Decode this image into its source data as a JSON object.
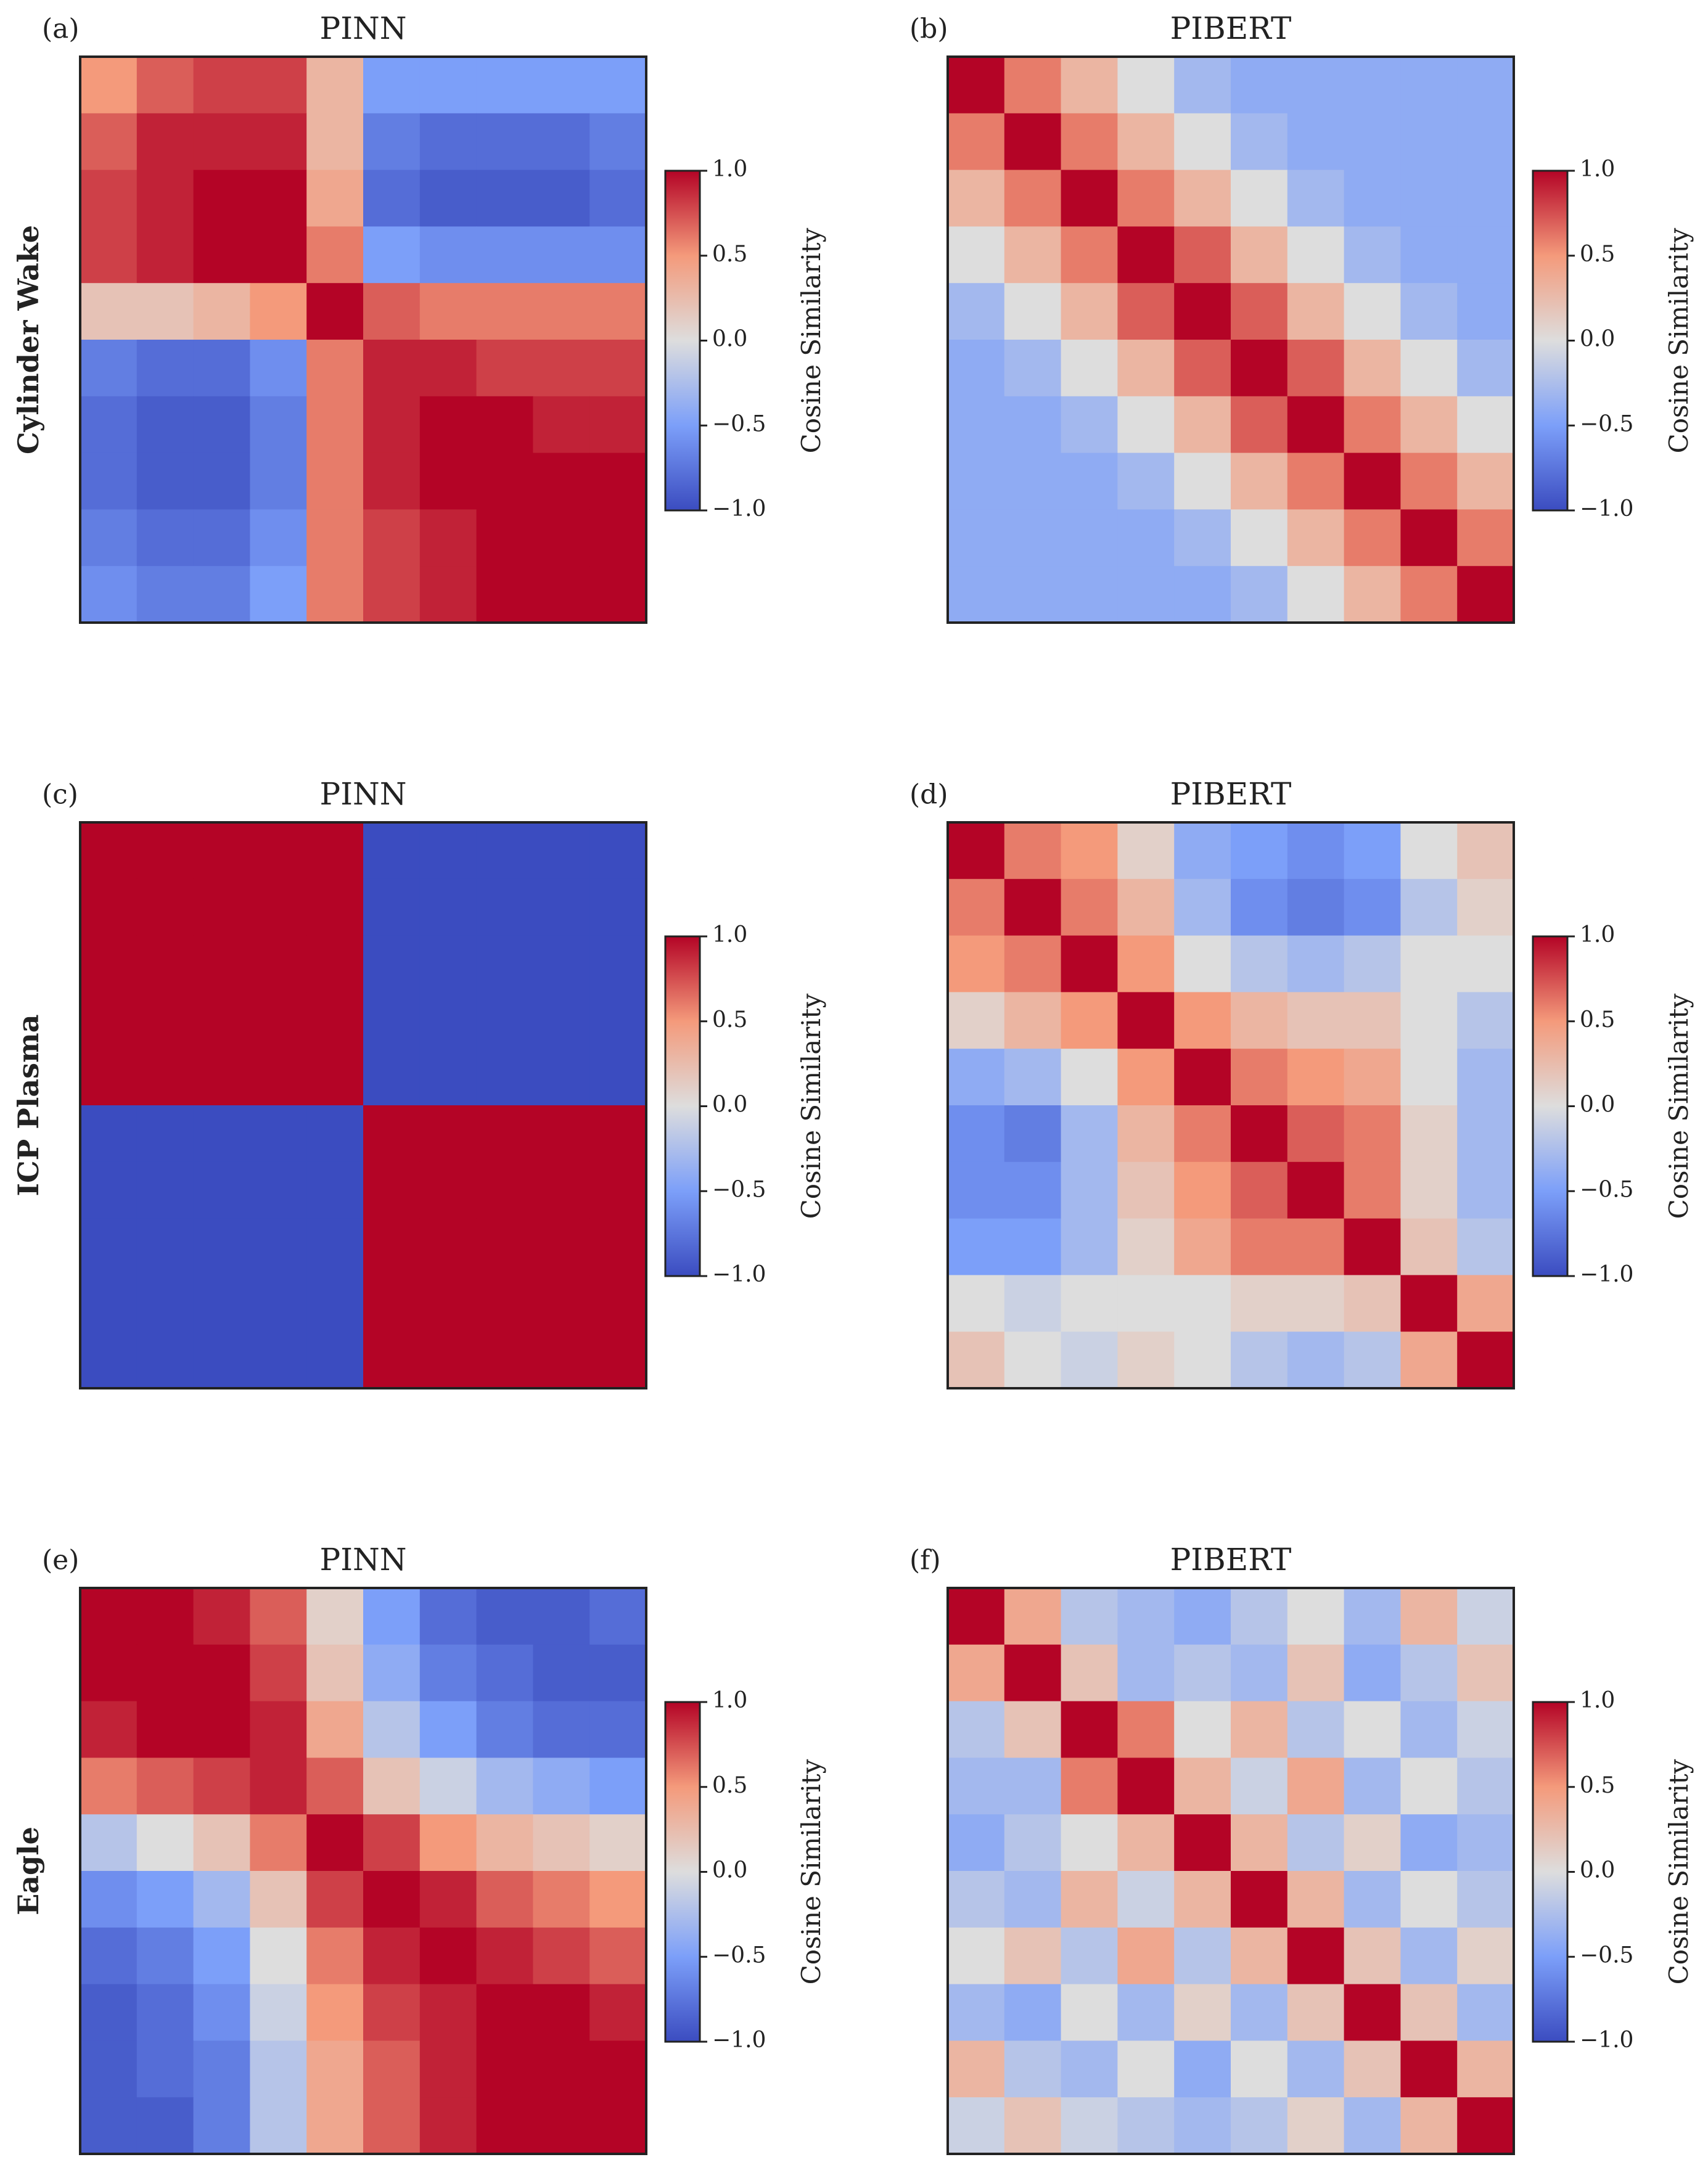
{
  "chart_data": [
    {
      "type": "heatmap",
      "panel_label": "(a)",
      "title": "PINN",
      "row_label": "Cylinder Wake",
      "colorbar_label": "Cosine Similarity",
      "clim": [
        -1,
        1
      ],
      "cticks": [
        {
          "value": -1,
          "label": "−1.0"
        },
        {
          "value": -0.5,
          "label": "−0.5"
        },
        {
          "value": 0,
          "label": "0.0"
        },
        {
          "value": 0.5,
          "label": "0.5"
        },
        {
          "value": 1,
          "label": "1.0"
        }
      ],
      "z": [
        [
          0.5,
          0.7,
          0.8,
          0.8,
          0.3,
          -0.5,
          -0.5,
          -0.5,
          -0.5,
          -0.5
        ],
        [
          0.7,
          0.9,
          0.9,
          0.9,
          0.3,
          -0.7,
          -0.8,
          -0.8,
          -0.8,
          -0.7
        ],
        [
          0.8,
          0.9,
          1.0,
          1.0,
          0.4,
          -0.8,
          -0.9,
          -0.9,
          -0.9,
          -0.8
        ],
        [
          0.8,
          0.9,
          1.0,
          1.0,
          0.6,
          -0.5,
          -0.6,
          -0.6,
          -0.6,
          -0.6
        ],
        [
          0.2,
          0.2,
          0.3,
          0.5,
          1.0,
          0.7,
          0.6,
          0.6,
          0.6,
          0.6
        ],
        [
          -0.7,
          -0.8,
          -0.8,
          -0.6,
          0.6,
          0.9,
          0.9,
          0.8,
          0.8,
          0.8
        ],
        [
          -0.8,
          -0.9,
          -0.9,
          -0.7,
          0.6,
          0.9,
          1.0,
          1.0,
          0.9,
          0.9
        ],
        [
          -0.8,
          -0.9,
          -0.9,
          -0.7,
          0.6,
          0.9,
          1.0,
          1.0,
          1.0,
          1.0
        ],
        [
          -0.7,
          -0.8,
          -0.8,
          -0.6,
          0.6,
          0.8,
          0.9,
          1.0,
          1.0,
          1.0
        ],
        [
          -0.6,
          -0.7,
          -0.7,
          -0.5,
          0.6,
          0.8,
          0.9,
          1.0,
          1.0,
          1.0
        ]
      ]
    },
    {
      "type": "heatmap",
      "panel_label": "(b)",
      "title": "PIBERT",
      "colorbar_label": "Cosine Similarity",
      "clim": [
        -1,
        1
      ],
      "cticks": [
        {
          "value": -1,
          "label": "−1.0"
        },
        {
          "value": -0.5,
          "label": "−0.5"
        },
        {
          "value": 0,
          "label": "0.0"
        },
        {
          "value": 0.5,
          "label": "0.5"
        },
        {
          "value": 1,
          "label": "1.0"
        }
      ],
      "z": [
        [
          1,
          0.6,
          0.3,
          0,
          -0.3,
          -0.4,
          -0.4,
          -0.4,
          -0.4,
          -0.4
        ],
        [
          0.6,
          1,
          0.6,
          0.3,
          0,
          -0.3,
          -0.4,
          -0.4,
          -0.4,
          -0.4
        ],
        [
          0.3,
          0.6,
          1,
          0.6,
          0.3,
          0,
          -0.3,
          -0.4,
          -0.4,
          -0.4
        ],
        [
          0,
          0.3,
          0.6,
          1,
          0.7,
          0.3,
          0,
          -0.3,
          -0.4,
          -0.4
        ],
        [
          -0.3,
          0,
          0.3,
          0.7,
          1,
          0.7,
          0.3,
          0,
          -0.3,
          -0.4
        ],
        [
          -0.4,
          -0.3,
          0,
          0.3,
          0.7,
          1,
          0.7,
          0.3,
          0,
          -0.3
        ],
        [
          -0.4,
          -0.4,
          -0.3,
          0,
          0.3,
          0.7,
          1,
          0.6,
          0.3,
          0
        ],
        [
          -0.4,
          -0.4,
          -0.4,
          -0.3,
          0,
          0.3,
          0.6,
          1,
          0.6,
          0.3
        ],
        [
          -0.4,
          -0.4,
          -0.4,
          -0.4,
          -0.3,
          0,
          0.3,
          0.6,
          1,
          0.6
        ],
        [
          -0.4,
          -0.4,
          -0.4,
          -0.4,
          -0.4,
          -0.3,
          0,
          0.3,
          0.6,
          1
        ]
      ]
    },
    {
      "type": "heatmap",
      "panel_label": "(c)",
      "title": "PINN",
      "row_label": "ICP Plasma",
      "colorbar_label": "Cosine Similarity",
      "clim": [
        -1,
        1
      ],
      "cticks": [
        {
          "value": -1,
          "label": "−1.0"
        },
        {
          "value": -0.5,
          "label": "−0.5"
        },
        {
          "value": 0,
          "label": "0.0"
        },
        {
          "value": 0.5,
          "label": "0.5"
        },
        {
          "value": 1,
          "label": "1.0"
        }
      ],
      "z": [
        [
          1,
          1,
          1,
          1,
          1,
          -1,
          -1,
          -1,
          -1,
          -1
        ],
        [
          1,
          1,
          1,
          1,
          1,
          -1,
          -1,
          -1,
          -1,
          -1
        ],
        [
          1,
          1,
          1,
          1,
          1,
          -1,
          -1,
          -1,
          -1,
          -1
        ],
        [
          1,
          1,
          1,
          1,
          1,
          -1,
          -1,
          -1,
          -1,
          -1
        ],
        [
          1,
          1,
          1,
          1,
          1,
          -1,
          -1,
          -1,
          -1,
          -1
        ],
        [
          -1,
          -1,
          -1,
          -1,
          -1,
          1,
          1,
          1,
          1,
          1
        ],
        [
          -1,
          -1,
          -1,
          -1,
          -1,
          1,
          1,
          1,
          1,
          1
        ],
        [
          -1,
          -1,
          -1,
          -1,
          -1,
          1,
          1,
          1,
          1,
          1
        ],
        [
          -1,
          -1,
          -1,
          -1,
          -1,
          1,
          1,
          1,
          1,
          1
        ],
        [
          -1,
          -1,
          -1,
          -1,
          -1,
          1,
          1,
          1,
          1,
          1
        ]
      ]
    },
    {
      "type": "heatmap",
      "panel_label": "(d)",
      "title": "PIBERT",
      "colorbar_label": "Cosine Similarity",
      "clim": [
        -1,
        1
      ],
      "cticks": [
        {
          "value": -1,
          "label": "−1.0"
        },
        {
          "value": -0.5,
          "label": "−0.5"
        },
        {
          "value": 0,
          "label": "0.0"
        },
        {
          "value": 0.5,
          "label": "0.5"
        },
        {
          "value": 1,
          "label": "1.0"
        }
      ],
      "z": [
        [
          1,
          0.6,
          0.5,
          0.1,
          -0.4,
          -0.5,
          -0.6,
          -0.5,
          0,
          0.2
        ],
        [
          0.6,
          1,
          0.6,
          0.3,
          -0.3,
          -0.6,
          -0.7,
          -0.6,
          -0.2,
          0.1
        ],
        [
          0.5,
          0.6,
          1,
          0.5,
          0,
          -0.2,
          -0.3,
          -0.2,
          0,
          0
        ],
        [
          0.1,
          0.3,
          0.5,
          1,
          0.5,
          0.3,
          0.2,
          0.2,
          0,
          -0.2
        ],
        [
          -0.4,
          -0.3,
          0,
          0.5,
          1,
          0.6,
          0.5,
          0.4,
          0,
          -0.3
        ],
        [
          -0.6,
          -0.7,
          -0.3,
          0.3,
          0.6,
          1,
          0.7,
          0.6,
          0.1,
          -0.3
        ],
        [
          -0.6,
          -0.6,
          -0.3,
          0.2,
          0.5,
          0.7,
          1,
          0.6,
          0.1,
          -0.3
        ],
        [
          -0.5,
          -0.5,
          -0.3,
          0.1,
          0.4,
          0.6,
          0.6,
          1,
          0.2,
          -0.2
        ],
        [
          0,
          -0.1,
          0,
          0,
          0,
          0.1,
          0.1,
          0.2,
          1,
          0.4
        ],
        [
          0.2,
          0,
          -0.1,
          0.1,
          0,
          -0.2,
          -0.3,
          -0.2,
          0.4,
          1
        ]
      ]
    },
    {
      "type": "heatmap",
      "panel_label": "(e)",
      "title": "PINN",
      "row_label": "Eagle",
      "colorbar_label": "Cosine Similarity",
      "clim": [
        -1,
        1
      ],
      "cticks": [
        {
          "value": -1,
          "label": "−1.0"
        },
        {
          "value": -0.5,
          "label": "−0.5"
        },
        {
          "value": 0,
          "label": "0.0"
        },
        {
          "value": 0.5,
          "label": "0.5"
        },
        {
          "value": 1,
          "label": "1.0"
        }
      ],
      "z": [
        [
          1,
          1,
          0.9,
          0.7,
          0.1,
          -0.5,
          -0.8,
          -0.9,
          -0.9,
          -0.8
        ],
        [
          1,
          1,
          1,
          0.8,
          0.2,
          -0.4,
          -0.7,
          -0.8,
          -0.9,
          -0.9
        ],
        [
          0.9,
          1,
          1,
          0.9,
          0.4,
          -0.2,
          -0.5,
          -0.7,
          -0.8,
          -0.8
        ],
        [
          0.6,
          0.7,
          0.8,
          0.9,
          0.7,
          0.2,
          -0.1,
          -0.3,
          -0.4,
          -0.5
        ],
        [
          -0.2,
          0,
          0.2,
          0.6,
          1,
          0.8,
          0.5,
          0.3,
          0.2,
          0.1
        ],
        [
          -0.6,
          -0.5,
          -0.3,
          0.2,
          0.8,
          1,
          0.9,
          0.7,
          0.6,
          0.5
        ],
        [
          -0.8,
          -0.7,
          -0.5,
          0,
          0.6,
          0.9,
          1,
          0.9,
          0.8,
          0.7
        ],
        [
          -0.9,
          -0.8,
          -0.6,
          -0.1,
          0.5,
          0.8,
          0.9,
          1,
          1,
          0.9
        ],
        [
          -0.9,
          -0.8,
          -0.7,
          -0.2,
          0.4,
          0.7,
          0.9,
          1,
          1,
          1
        ],
        [
          -0.9,
          -0.9,
          -0.7,
          -0.2,
          0.4,
          0.7,
          0.9,
          1,
          1,
          1
        ]
      ]
    },
    {
      "type": "heatmap",
      "panel_label": "(f)",
      "title": "PIBERT",
      "colorbar_label": "Cosine Similarity",
      "clim": [
        -1,
        1
      ],
      "cticks": [
        {
          "value": -1,
          "label": "−1.0"
        },
        {
          "value": -0.5,
          "label": "−0.5"
        },
        {
          "value": 0,
          "label": "0.0"
        },
        {
          "value": 0.5,
          "label": "0.5"
        },
        {
          "value": 1,
          "label": "1.0"
        }
      ],
      "z": [
        [
          1,
          0.4,
          -0.2,
          -0.3,
          -0.4,
          -0.2,
          0,
          -0.3,
          0.3,
          -0.1
        ],
        [
          0.4,
          1,
          0.2,
          -0.3,
          -0.2,
          -0.3,
          0.2,
          -0.4,
          -0.2,
          0.2
        ],
        [
          -0.2,
          0.2,
          1,
          0.6,
          0,
          0.3,
          -0.2,
          0,
          -0.3,
          -0.1
        ],
        [
          -0.3,
          -0.3,
          0.6,
          1,
          0.3,
          -0.1,
          0.4,
          -0.3,
          0,
          -0.2
        ],
        [
          -0.4,
          -0.2,
          0,
          0.3,
          1,
          0.3,
          -0.2,
          0.1,
          -0.4,
          -0.3
        ],
        [
          -0.2,
          -0.3,
          0.3,
          -0.1,
          0.3,
          1,
          0.3,
          -0.3,
          0,
          -0.2
        ],
        [
          0,
          0.2,
          -0.2,
          0.4,
          -0.2,
          0.3,
          1,
          0.2,
          -0.3,
          0.1
        ],
        [
          -0.3,
          -0.4,
          0,
          -0.3,
          0.1,
          -0.3,
          0.2,
          1,
          0.2,
          -0.3
        ],
        [
          0.3,
          -0.2,
          -0.3,
          0,
          -0.4,
          0,
          -0.3,
          0.2,
          1,
          0.3
        ],
        [
          -0.1,
          0.2,
          -0.1,
          -0.2,
          -0.3,
          -0.2,
          0.1,
          -0.3,
          0.3,
          1
        ]
      ]
    }
  ]
}
